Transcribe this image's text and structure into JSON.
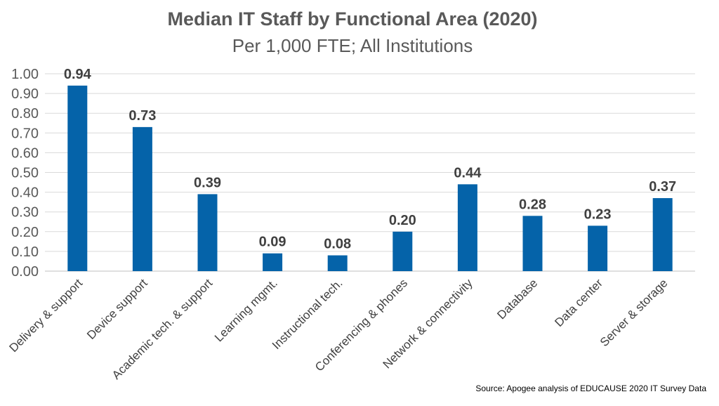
{
  "chart_data": {
    "type": "bar",
    "title": "Median IT Staff by Functional Area (2020)",
    "subtitle": "Per 1,000 FTE; All Institutions",
    "xlabel": "",
    "ylabel": "",
    "ylim": [
      0,
      1.0
    ],
    "yticks": [
      "0.00",
      "0.10",
      "0.20",
      "0.30",
      "0.40",
      "0.50",
      "0.60",
      "0.70",
      "0.80",
      "0.90",
      "1.00"
    ],
    "grid": true,
    "legend": "none",
    "categories": [
      "Delivery & support",
      "Device support",
      "Academic tech. & support",
      "Learning mgmt.",
      "Instructional tech.",
      "Conferencing & phones",
      "Network & connectivity",
      "Database",
      "Data center",
      "Server & storage"
    ],
    "values": [
      0.94,
      0.73,
      0.39,
      0.09,
      0.08,
      0.2,
      0.44,
      0.28,
      0.23,
      0.37
    ],
    "value_labels": [
      "0.94",
      "0.73",
      "0.39",
      "0.09",
      "0.08",
      "0.20",
      "0.44",
      "0.28",
      "0.23",
      "0.37"
    ],
    "bar_color": "#0563A9",
    "source": "Source: Apogee analysis of EDUCAUSE 2020 IT Survey Data"
  }
}
